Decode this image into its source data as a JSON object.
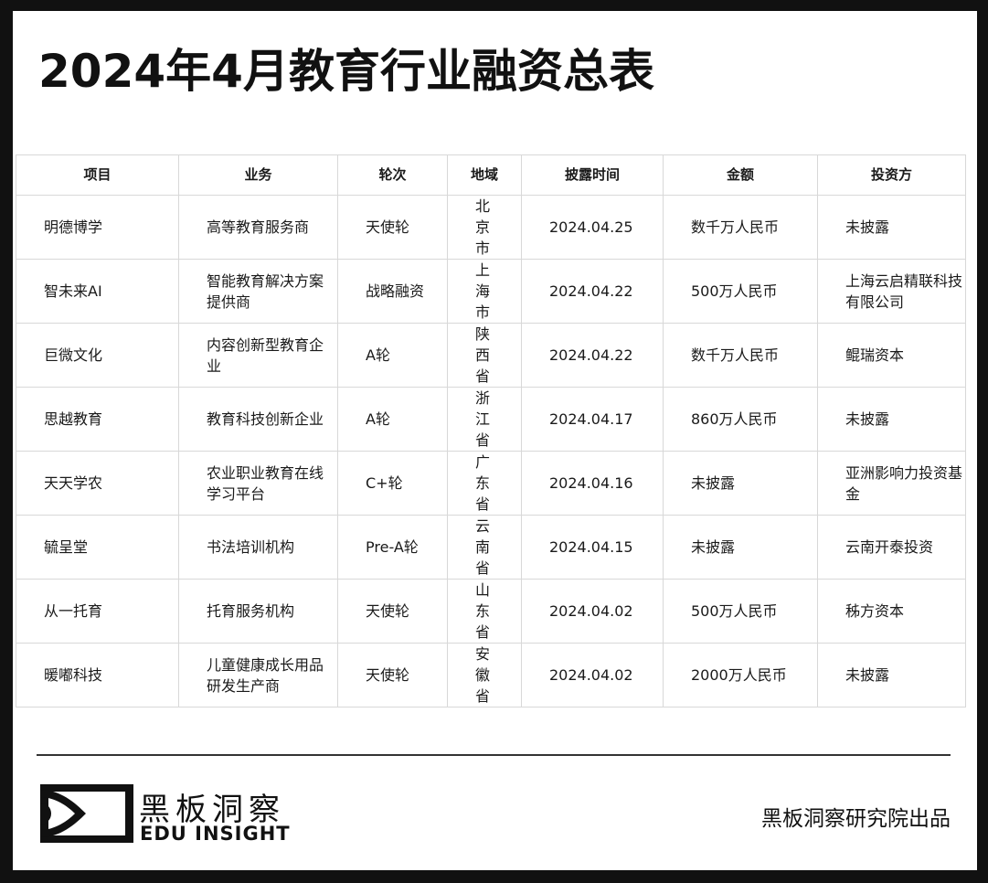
{
  "title": "2024年4月教育行业融资总表",
  "table": {
    "headers": [
      "项目",
      "业务",
      "轮次",
      "地域",
      "披露时间",
      "金额",
      "投资方"
    ],
    "rows": [
      [
        "明德博学",
        "高等教育服务商",
        "天使轮",
        "北京市",
        "2024.04.25",
        "数千万人民币",
        "未披露"
      ],
      [
        "智未来AI",
        "智能教育解决方案提供商",
        "战略融资",
        "上海市",
        "2024.04.22",
        "500万人民币",
        "上海云启精联科技有限公司"
      ],
      [
        "巨微文化",
        "内容创新型教育企业",
        "A轮",
        "陕西省",
        "2024.04.22",
        "数千万人民币",
        "鲲瑞资本"
      ],
      [
        "思越教育",
        "教育科技创新企业",
        "A轮",
        "浙江省",
        "2024.04.17",
        "860万人民币",
        "未披露"
      ],
      [
        "天天学农",
        "农业职业教育在线学习平台",
        "C+轮",
        "广东省",
        "2024.04.16",
        "未披露",
        "亚洲影响力投资基金"
      ],
      [
        "毓呈堂",
        "书法培训机构",
        "Pre-A轮",
        "云南省",
        "2024.04.15",
        "未披露",
        "云南开泰投资"
      ],
      [
        "从一托育",
        "托育服务机构",
        "天使轮",
        "山东省",
        "2024.04.02",
        "500万人民币",
        "秭方资本"
      ],
      [
        "暖嘟科技",
        "儿童健康成长用品研发生产商",
        "天使轮",
        "安徽省",
        "2024.04.02",
        "2000万人民币",
        "未披露"
      ]
    ]
  },
  "footer": {
    "brand_cn": "黑板洞察",
    "brand_en": "EDU INSIGHT",
    "credit": "黑板洞察研究院出品"
  }
}
